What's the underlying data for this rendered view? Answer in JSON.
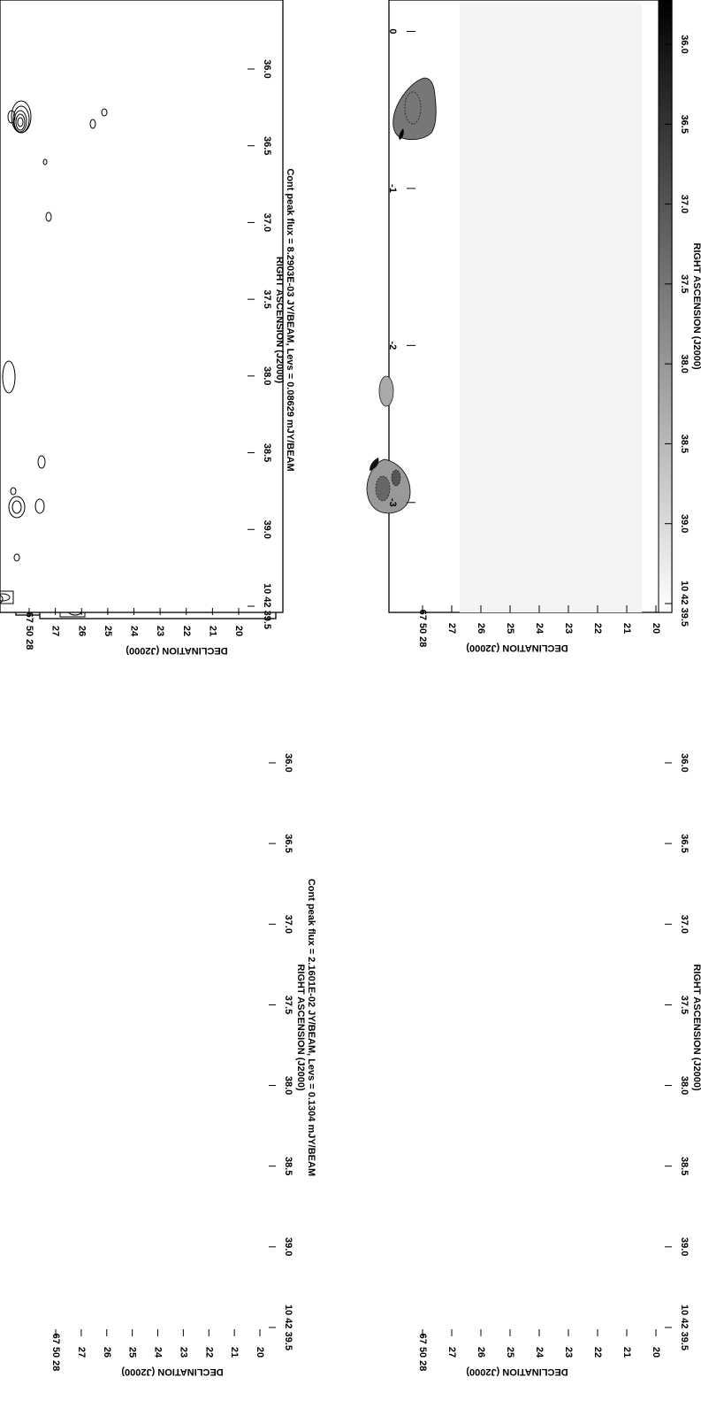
{
  "chart_data": [
    {
      "type": "contour",
      "xlabel": "RIGHT ASCENSION (J2000)",
      "ylabel": "DECLINATION (J2000)",
      "x_ticks": [
        "10 42 39.5",
        "39.0",
        "38.5",
        "38.0",
        "37.5",
        "37.0",
        "36.5",
        "36.0"
      ],
      "y_ticks": [
        "67 50 28",
        "27",
        "26",
        "25",
        "24",
        "23",
        "22",
        "21",
        "20"
      ],
      "caption": "Cont peak flux = 8.2903E-03 JY/BEAM, Levs = 0.08629 mJY/BEAM"
    },
    {
      "type": "heatmap",
      "xlabel": "RIGHT ASCENSION (J2000)",
      "ylabel": "DECLINATION (J2000)",
      "x_ticks": [
        "10 42 39.5",
        "39.0",
        "38.5",
        "38.0",
        "37.5",
        "37.0",
        "36.5",
        "36.0"
      ],
      "y_ticks": [
        "67 50 28",
        "27",
        "26",
        "25",
        "24",
        "23",
        "22",
        "21",
        "20"
      ],
      "colorbar_ticks": [
        "0",
        "-1",
        "-2",
        "-3"
      ],
      "colorbar_range": [
        -3.7,
        0.2
      ]
    },
    {
      "type": "contour",
      "xlabel": "RIGHT ASCENSION (J2000)",
      "ylabel": "DECLINATION (J2000)",
      "x_ticks": [
        "10 42 39.5",
        "39.0",
        "38.5",
        "38.0",
        "37.5",
        "37.0",
        "36.5",
        "36.0"
      ],
      "y_ticks": [
        "67 50 28",
        "27",
        "26",
        "25",
        "24",
        "23",
        "22",
        "21",
        "20"
      ],
      "caption": "Cont peak flux = 2.1601E-02 JY/BEAM, Levs = 0.1304 mJY/BEAM"
    },
    {
      "type": "contour",
      "xlabel": "RIGHT ASCENSION (J2000)",
      "ylabel": "DECLINATION (J2000)",
      "x_ticks": [
        "10 42 39.5",
        "39.0",
        "38.5",
        "38.0",
        "37.5",
        "37.0",
        "36.5",
        "36.0"
      ],
      "y_ticks": [
        "67 50 28",
        "27",
        "26",
        "25",
        "24",
        "23",
        "22",
        "21",
        "20"
      ],
      "caption": ""
    }
  ]
}
